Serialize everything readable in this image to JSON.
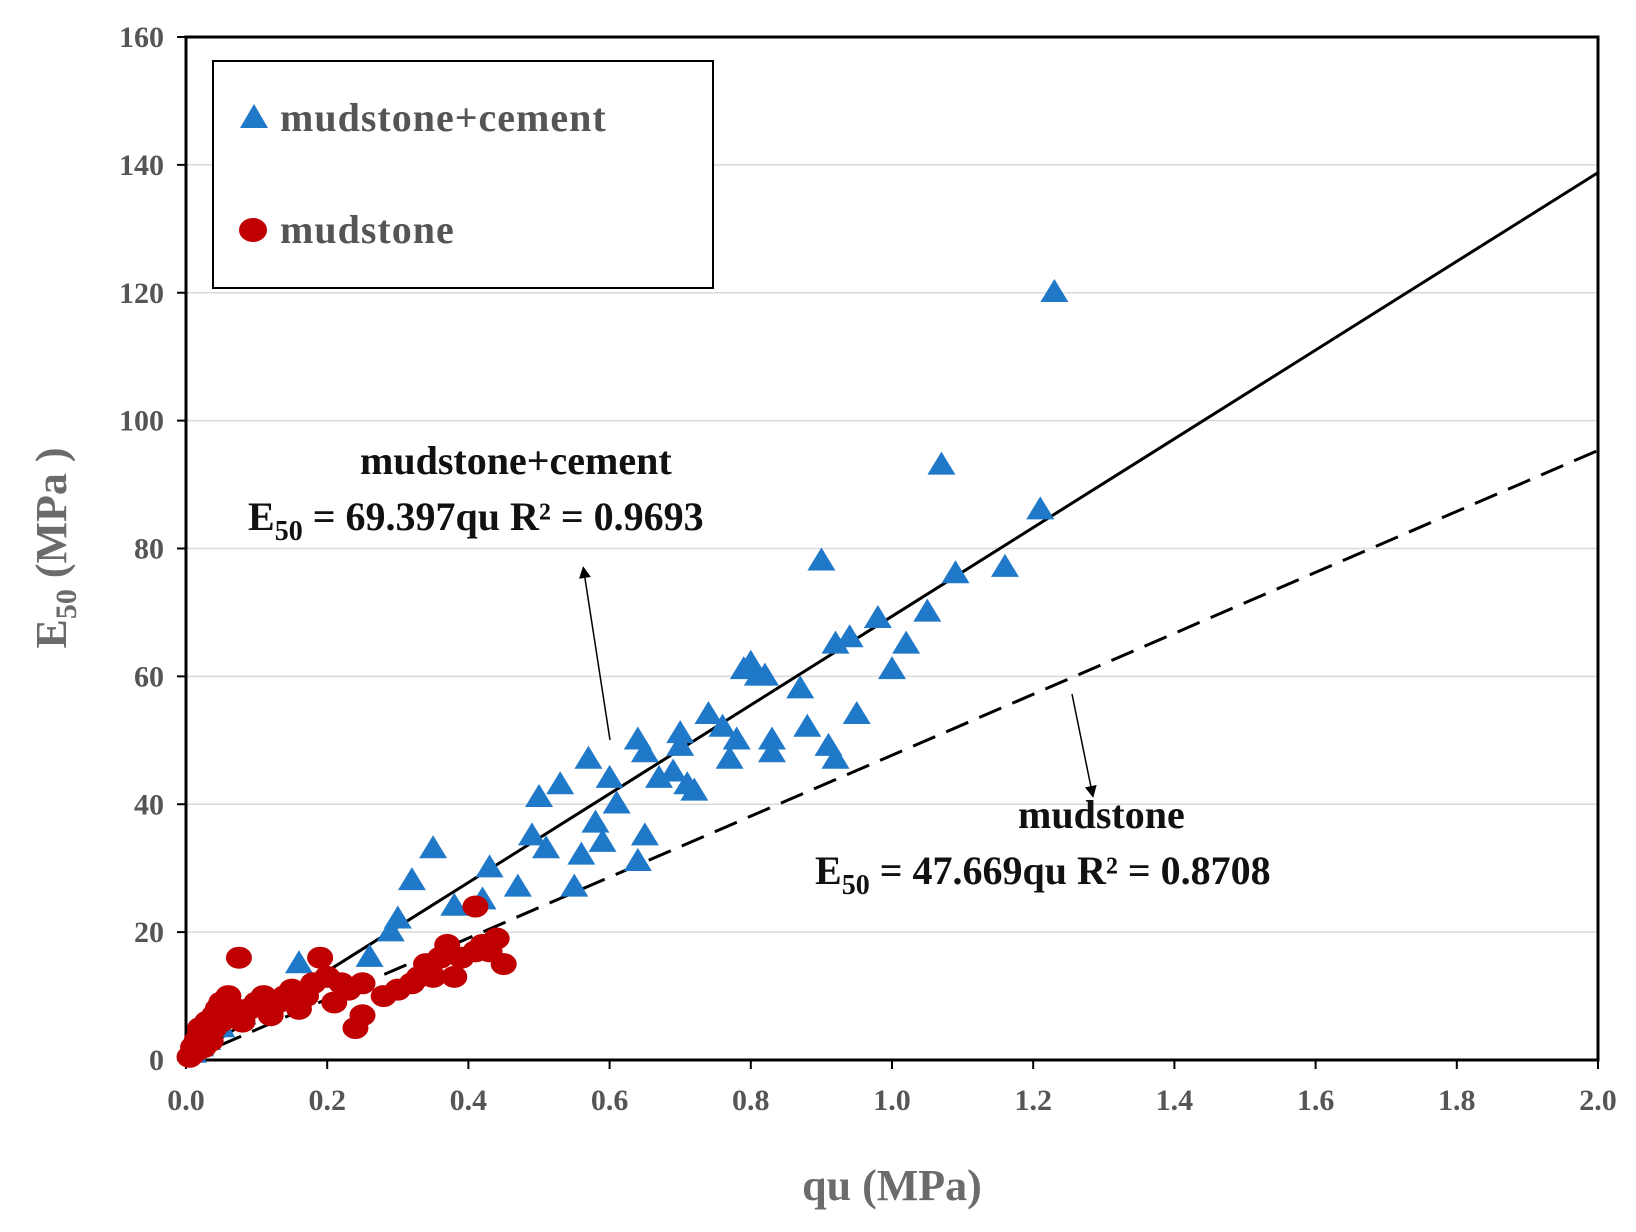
{
  "colors": {
    "cement_marker": "#1f78c8",
    "mudstone_marker": "#c00000",
    "gridline": "#d9d9d9",
    "axis": "#000000",
    "tick_text": "#555555"
  },
  "chart_data": {
    "type": "scatter",
    "xlabel": "qu (MPa)",
    "ylabel_main": "E",
    "ylabel_sub": "50",
    "ylabel_unit": " (MPa )",
    "xlim": [
      0,
      2.0
    ],
    "ylim": [
      0,
      160
    ],
    "xticks": [
      0,
      0.2,
      0.4,
      0.6,
      0.8,
      1.0,
      1.2,
      1.4,
      1.6,
      1.8,
      2.0
    ],
    "xtick_labels": [
      "0.0",
      "0.2",
      "0.4",
      "0.6",
      "0.8",
      "1.0",
      "1.2",
      "1.4",
      "1.6",
      "1.8",
      "2.0"
    ],
    "yticks": [
      0,
      20,
      40,
      60,
      80,
      100,
      120,
      140,
      160
    ],
    "ytick_labels": [
      "0",
      "20",
      "40",
      "60",
      "80",
      "100",
      "120",
      "140",
      "160"
    ],
    "grid": "horizontal",
    "legend": {
      "placement": "top-left",
      "entries": [
        {
          "label": "mudstone+cement",
          "marker": "triangle"
        },
        {
          "label": "mudstone",
          "marker": "circle"
        }
      ]
    },
    "series": [
      {
        "name": "mudstone+cement",
        "marker": "triangle",
        "points": [
          [
            0.01,
            1
          ],
          [
            0.02,
            2
          ],
          [
            0.03,
            3
          ],
          [
            0.05,
            5
          ],
          [
            0.08,
            7
          ],
          [
            0.16,
            15
          ],
          [
            0.26,
            16
          ],
          [
            0.29,
            20
          ],
          [
            0.3,
            22
          ],
          [
            0.32,
            28
          ],
          [
            0.35,
            33
          ],
          [
            0.38,
            24
          ],
          [
            0.42,
            25
          ],
          [
            0.43,
            30
          ],
          [
            0.47,
            27
          ],
          [
            0.49,
            35
          ],
          [
            0.5,
            41
          ],
          [
            0.51,
            33
          ],
          [
            0.53,
            43
          ],
          [
            0.55,
            27
          ],
          [
            0.56,
            32
          ],
          [
            0.57,
            47
          ],
          [
            0.58,
            37
          ],
          [
            0.59,
            34
          ],
          [
            0.6,
            44
          ],
          [
            0.61,
            40
          ],
          [
            0.64,
            31
          ],
          [
            0.64,
            50
          ],
          [
            0.65,
            35
          ],
          [
            0.65,
            48
          ],
          [
            0.67,
            44
          ],
          [
            0.69,
            45
          ],
          [
            0.7,
            51
          ],
          [
            0.7,
            49
          ],
          [
            0.71,
            43
          ],
          [
            0.72,
            42
          ],
          [
            0.74,
            54
          ],
          [
            0.76,
            52
          ],
          [
            0.77,
            47
          ],
          [
            0.78,
            50
          ],
          [
            0.79,
            61
          ],
          [
            0.8,
            62
          ],
          [
            0.81,
            60
          ],
          [
            0.82,
            60
          ],
          [
            0.83,
            50
          ],
          [
            0.83,
            48
          ],
          [
            0.87,
            58
          ],
          [
            0.88,
            52
          ],
          [
            0.9,
            78
          ],
          [
            0.91,
            49
          ],
          [
            0.92,
            47
          ],
          [
            0.92,
            65
          ],
          [
            0.94,
            66
          ],
          [
            0.95,
            54
          ],
          [
            0.98,
            69
          ],
          [
            1.0,
            61
          ],
          [
            1.02,
            65
          ],
          [
            1.05,
            70
          ],
          [
            1.07,
            93
          ],
          [
            1.09,
            76
          ],
          [
            1.16,
            77
          ],
          [
            1.21,
            86
          ],
          [
            1.23,
            120
          ]
        ]
      },
      {
        "name": "mudstone",
        "marker": "circle",
        "points": [
          [
            0.005,
            0.5
          ],
          [
            0.01,
            1
          ],
          [
            0.01,
            2
          ],
          [
            0.015,
            3
          ],
          [
            0.02,
            4
          ],
          [
            0.02,
            5
          ],
          [
            0.025,
            2
          ],
          [
            0.03,
            6
          ],
          [
            0.03,
            4
          ],
          [
            0.035,
            3
          ],
          [
            0.04,
            7
          ],
          [
            0.04,
            5
          ],
          [
            0.045,
            8
          ],
          [
            0.05,
            6
          ],
          [
            0.05,
            9
          ],
          [
            0.06,
            7
          ],
          [
            0.06,
            10
          ],
          [
            0.07,
            8
          ],
          [
            0.075,
            16
          ],
          [
            0.08,
            6
          ],
          [
            0.09,
            8
          ],
          [
            0.1,
            9
          ],
          [
            0.11,
            10
          ],
          [
            0.12,
            7
          ],
          [
            0.13,
            9
          ],
          [
            0.14,
            10
          ],
          [
            0.15,
            11
          ],
          [
            0.16,
            8
          ],
          [
            0.17,
            10
          ],
          [
            0.18,
            12
          ],
          [
            0.19,
            16
          ],
          [
            0.2,
            13
          ],
          [
            0.21,
            9
          ],
          [
            0.22,
            12
          ],
          [
            0.23,
            11
          ],
          [
            0.24,
            5
          ],
          [
            0.25,
            7
          ],
          [
            0.25,
            12
          ],
          [
            0.28,
            10
          ],
          [
            0.3,
            11
          ],
          [
            0.32,
            12
          ],
          [
            0.33,
            13
          ],
          [
            0.34,
            15
          ],
          [
            0.35,
            13
          ],
          [
            0.36,
            16
          ],
          [
            0.37,
            18
          ],
          [
            0.38,
            13
          ],
          [
            0.39,
            16
          ],
          [
            0.41,
            17
          ],
          [
            0.41,
            24
          ],
          [
            0.42,
            18
          ],
          [
            0.43,
            17
          ],
          [
            0.44,
            19
          ],
          [
            0.45,
            15
          ]
        ]
      }
    ],
    "fits": [
      {
        "series": "mudstone+cement",
        "slope": 69.397,
        "style": "solid",
        "label_name": "mudstone+cement",
        "eq_lhs_main": "E",
        "eq_lhs_sub": "50",
        "eq_rhs": " = 69.397qu  R² = 0.9693"
      },
      {
        "series": "mudstone",
        "slope": 47.669,
        "style": "dashed",
        "label_name": "mudstone",
        "eq_lhs_main": "E",
        "eq_lhs_sub": "50",
        "eq_rhs": " = 47.669qu  R² = 0.8708"
      }
    ]
  }
}
